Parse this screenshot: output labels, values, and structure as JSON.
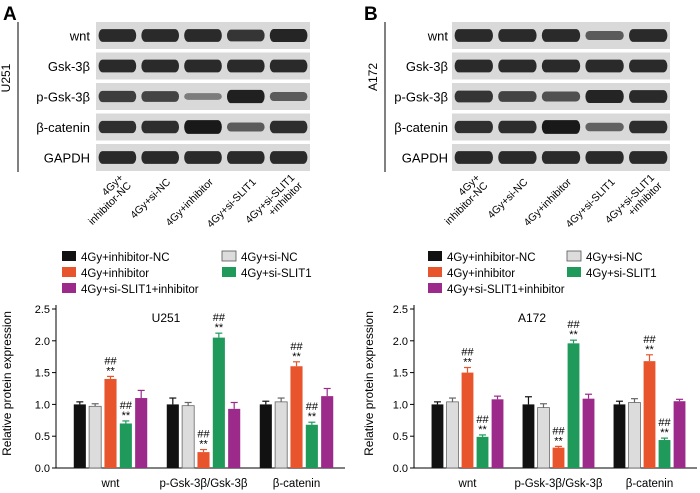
{
  "colors": {
    "series": [
      "#111111",
      "#dcdcdc",
      "#e8552d",
      "#1f9a5b",
      "#9b2a8a"
    ],
    "blot_background": "#d9d9d9",
    "band": "#161616"
  },
  "panels": [
    {
      "letter": "A",
      "cell_line": "U251",
      "blot": {
        "rows": [
          "wnt",
          "Gsk-3β",
          "p-Gsk-3β",
          "β-catenin",
          "GAPDH"
        ],
        "band_intensity": [
          [
            0.85,
            0.85,
            0.85,
            0.75,
            0.88
          ],
          [
            0.85,
            0.85,
            0.85,
            0.85,
            0.85
          ],
          [
            0.7,
            0.65,
            0.2,
            0.92,
            0.45
          ],
          [
            0.8,
            0.82,
            0.98,
            0.45,
            0.82
          ],
          [
            0.85,
            0.85,
            0.85,
            0.85,
            0.85
          ]
        ],
        "lanes": [
          [
            "4Gy+",
            "inhibitor-NC"
          ],
          [
            "4Gy+si-NC"
          ],
          [
            "4Gy+inhibitor"
          ],
          [
            "4Gy+si-SLIT1"
          ],
          [
            "4Gy+si-SLIT1",
            "+inhibitor"
          ]
        ]
      },
      "legend": [
        [
          "4Gy+inhibitor-NC",
          "4Gy+si-NC"
        ],
        [
          "4Gy+inhibitor",
          "4Gy+si-SLIT1"
        ],
        [
          "4Gy+si-SLIT1+inhibitor"
        ]
      ],
      "chart_data": {
        "type": "bar",
        "title": "U251",
        "ylabel": "Relative protein expression",
        "ylim": [
          0,
          2.5
        ],
        "yticks": [
          0.0,
          0.5,
          1.0,
          1.5,
          2.0,
          2.5
        ],
        "ytick_labels": [
          "0.0",
          "0.5",
          "1.0",
          "1.5",
          "2.0",
          "2.5"
        ],
        "categories": [
          "wnt",
          "p-Gsk-3β/Gsk-3β",
          "β-catenin"
        ],
        "series": [
          {
            "name": "4Gy+inhibitor-NC",
            "values": [
              1.0,
              1.0,
              1.0
            ],
            "errors": [
              0.04,
              0.1,
              0.05
            ],
            "marks": [
              "",
              "",
              ""
            ]
          },
          {
            "name": "4Gy+si-NC",
            "values": [
              0.97,
              0.98,
              1.04
            ],
            "errors": [
              0.04,
              0.05,
              0.06
            ],
            "marks": [
              "",
              "",
              ""
            ]
          },
          {
            "name": "4Gy+inhibitor",
            "values": [
              1.4,
              0.25,
              1.6
            ],
            "errors": [
              0.04,
              0.04,
              0.07
            ],
            "marks": [
              [
                "##",
                "**"
              ],
              [
                "##",
                "**"
              ],
              [
                "##",
                "**"
              ]
            ]
          },
          {
            "name": "4Gy+si-SLIT1",
            "values": [
              0.7,
              2.05,
              0.68
            ],
            "errors": [
              0.04,
              0.07,
              0.04
            ],
            "marks": [
              [
                "##",
                "**"
              ],
              [
                "##",
                "**"
              ],
              [
                "##",
                "**"
              ]
            ]
          },
          {
            "name": "4Gy+si-SLIT1+inhibitor",
            "values": [
              1.1,
              0.93,
              1.13
            ],
            "errors": [
              0.12,
              0.1,
              0.12
            ],
            "marks": [
              "",
              "",
              ""
            ]
          }
        ]
      }
    },
    {
      "letter": "B",
      "cell_line": "A172",
      "blot": {
        "rows": [
          "wnt",
          "Gsk-3β",
          "p-Gsk-3β",
          "β-catenin",
          "GAPDH"
        ],
        "band_intensity": [
          [
            0.85,
            0.85,
            0.85,
            0.45,
            0.85
          ],
          [
            0.85,
            0.85,
            0.85,
            0.85,
            0.85
          ],
          [
            0.75,
            0.65,
            0.55,
            0.9,
            0.85
          ],
          [
            0.8,
            0.82,
            0.98,
            0.4,
            0.82
          ],
          [
            0.85,
            0.85,
            0.85,
            0.85,
            0.85
          ]
        ],
        "lanes": [
          [
            "4Gy+",
            "inhibitor-NC"
          ],
          [
            "4Gy+si-NC"
          ],
          [
            "4Gy+inhibitor"
          ],
          [
            "4Gy+si-SLIT1"
          ],
          [
            "4Gy+si-SLIT1",
            "+inhibitor"
          ]
        ]
      },
      "legend": [
        [
          "4Gy+inhibitor-NC",
          "4Gy+si-NC"
        ],
        [
          "4Gy+inhibitor",
          "4Gy+si-SLIT1"
        ],
        [
          "4Gy+si-SLIT1+inhibitor"
        ]
      ],
      "chart_data": {
        "type": "bar",
        "title": "A172",
        "ylabel": "Relative protein expression",
        "ylim": [
          0,
          2.5
        ],
        "yticks": [
          0.0,
          0.5,
          1.0,
          1.5,
          2.0,
          2.5
        ],
        "ytick_labels": [
          "0.0",
          "0.5",
          "1.0",
          "1.5",
          "2.0",
          "2.5"
        ],
        "categories": [
          "wnt",
          "p-Gsk-3β/Gsk-3β",
          "β-catenin"
        ],
        "series": [
          {
            "name": "4Gy+inhibitor-NC",
            "values": [
              1.0,
              1.0,
              1.0
            ],
            "errors": [
              0.04,
              0.12,
              0.05
            ],
            "marks": [
              "",
              "",
              ""
            ]
          },
          {
            "name": "4Gy+si-NC",
            "values": [
              1.04,
              0.95,
              1.03
            ],
            "errors": [
              0.06,
              0.06,
              0.06
            ],
            "marks": [
              "",
              "",
              ""
            ]
          },
          {
            "name": "4Gy+inhibitor",
            "values": [
              1.5,
              0.32,
              1.68
            ],
            "errors": [
              0.08,
              0.02,
              0.1
            ],
            "marks": [
              [
                "##",
                "**"
              ],
              [
                "##",
                "**"
              ],
              [
                "##",
                "**"
              ]
            ]
          },
          {
            "name": "4Gy+si-SLIT1",
            "values": [
              0.49,
              1.96,
              0.44
            ],
            "errors": [
              0.03,
              0.05,
              0.03
            ],
            "marks": [
              [
                "##",
                "**"
              ],
              [
                "##",
                "**"
              ],
              [
                "##",
                "**"
              ]
            ]
          },
          {
            "name": "4Gy+si-SLIT1+inhibitor",
            "values": [
              1.08,
              1.09,
              1.05
            ],
            "errors": [
              0.05,
              0.07,
              0.03
            ],
            "marks": [
              "",
              "",
              ""
            ]
          }
        ]
      }
    }
  ]
}
